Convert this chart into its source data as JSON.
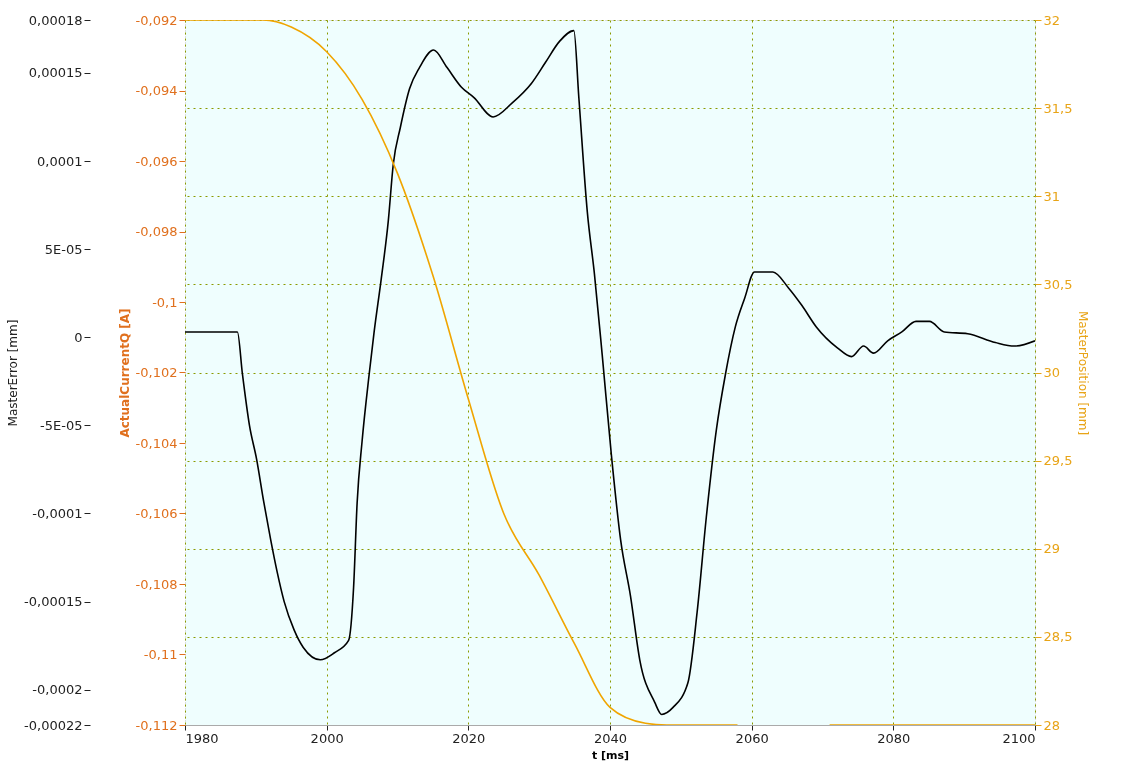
{
  "chart_data": {
    "type": "line",
    "xlabel": "t [ms]",
    "ylabel": "MasterError [mm]",
    "y2label": "MasterPosition [mm]",
    "y3label": "ActualCurrentQ [A]",
    "xlim": [
      1980,
      2100
    ],
    "xticks": [
      1980,
      2000,
      2020,
      2040,
      2060,
      2080,
      2100
    ],
    "ylim": [
      -0.00022,
      0.00018
    ],
    "yticks": [
      {
        "value": 0.00018,
        "label": "0,00018"
      },
      {
        "value": 0.00015,
        "label": "0,00015"
      },
      {
        "value": 0.0001,
        "label": "0,0001"
      },
      {
        "value": 5e-05,
        "label": "5E-05"
      },
      {
        "value": 0,
        "label": "0"
      },
      {
        "value": -5e-05,
        "label": "-5E-05"
      },
      {
        "value": -0.0001,
        "label": "-0,0001"
      },
      {
        "value": -0.00015,
        "label": "-0,00015"
      },
      {
        "value": -0.0002,
        "label": "-0,0002"
      },
      {
        "value": -0.00022,
        "label": "-0,00022"
      }
    ],
    "y2lim": [
      28,
      32
    ],
    "y2ticks": [
      {
        "value": 28,
        "label": "28"
      },
      {
        "value": 28.5,
        "label": "28,5"
      },
      {
        "value": 29,
        "label": "29"
      },
      {
        "value": 29.5,
        "label": "29,5"
      },
      {
        "value": 30,
        "label": "30"
      },
      {
        "value": 30.5,
        "label": "30,5"
      },
      {
        "value": 31,
        "label": "31"
      },
      {
        "value": 31.5,
        "label": "31,5"
      },
      {
        "value": 32,
        "label": "32"
      }
    ],
    "y3lim": [
      -0.112,
      -0.092
    ],
    "y3ticks": [
      {
        "value": -0.092,
        "label": "-0,092"
      },
      {
        "value": -0.094,
        "label": "-0,094"
      },
      {
        "value": -0.096,
        "label": "-0,096"
      },
      {
        "value": -0.098,
        "label": "-0,098"
      },
      {
        "value": -0.1,
        "label": "-0,1"
      },
      {
        "value": -0.102,
        "label": "-0,102"
      },
      {
        "value": -0.104,
        "label": "-0,104"
      },
      {
        "value": -0.106,
        "label": "-0,106"
      },
      {
        "value": -0.108,
        "label": "-0,108"
      },
      {
        "value": -0.11,
        "label": "-0,11"
      },
      {
        "value": -0.112,
        "label": "-0,112"
      }
    ],
    "grid": true,
    "marker": "none",
    "line_style": "solid",
    "series": [
      {
        "color": "#000000",
        "axis": "y",
        "x": [
          1980,
          1987.2,
          1987.4,
          1988.1,
          1989.1,
          1990.1,
          1991.1,
          1992.1,
          1993.0,
          1994.0,
          1995.4,
          1996.7,
          1999.1,
          2001.1,
          2003.1,
          2003.8,
          2004.3,
          2005.0,
          2006.0,
          2006.7,
          2007.7,
          2008.7,
          2009.4,
          2010.4,
          2011.7,
          2013.1,
          2015.1,
          2017.0,
          2019.0,
          2020.8,
          2023.5,
          2026.2,
          2028.9,
          2030.9,
          2032.9,
          2034.9,
          2035.6,
          2036.8,
          2037.8,
          2038.9,
          2040.2,
          2041.5,
          2042.9,
          2044.2,
          2046.3,
          2047.3,
          2048.9,
          2051.0,
          2052.3,
          2053.6,
          2055.0,
          2056.3,
          2057.7,
          2059.0,
          2060.4,
          2063.0,
          2065.2,
          2067.1,
          2069.1,
          2072.1,
          2074.1,
          2075.8,
          2077.2,
          2079.2,
          2081.2,
          2083.2,
          2085.1,
          2087.2,
          2090.5,
          2094.4,
          2097.1,
          2100
        ],
        "values": [
          3e-06,
          3e-06,
          3e-06,
          -2.06e-05,
          -5e-05,
          -6.9e-05,
          -9.3e-05,
          -0.000115,
          -0.000133,
          -0.00015,
          -0.000166,
          -0.000176,
          -0.000183,
          -0.000179,
          -0.000172,
          -0.000142,
          -9.4e-05,
          -5.9e-05,
          -2.1e-05,
          3e-06,
          3.3e-05,
          6.6e-05,
          9.8e-05,
          0.000119,
          0.000141,
          0.000153,
          0.000163,
          0.000153,
          0.000142,
          0.000136,
          0.000125,
          0.000133,
          0.000144,
          0.000156,
          0.000168,
          0.000174,
          0.000136,
          7.1e-05,
          3.6e-05,
          -1e-05,
          -6.7e-05,
          -0.000115,
          -0.000147,
          -0.000183,
          -0.000207,
          -0.000214,
          -0.00021,
          -0.000196,
          -0.000156,
          -0.000102,
          -5.3e-05,
          -2.1e-05,
          6e-06,
          2.2e-05,
          3.7e-05,
          3.7e-05,
          2.8e-05,
          1.8e-05,
          6e-06,
          -6e-06,
          -1.1e-05,
          -5e-06,
          -9e-06,
          -2e-06,
          3e-06,
          9e-06,
          9e-06,
          3e-06,
          2e-06,
          -3e-06,
          -5e-06,
          -2e-06
        ]
      },
      {
        "color": "#f0a500",
        "axis": "y2",
        "x": [
          1980,
          1991,
          1995,
          2000,
          2005,
          2010,
          2015,
          2020,
          2025,
          2030,
          2035,
          2040,
          2045,
          2048,
          2058,
          2064,
          2071,
          2100
        ],
        "values": [
          32,
          32,
          31.96,
          31.82,
          31.55,
          31.13,
          30.55,
          29.85,
          29.2,
          28.85,
          28.46,
          28.1,
          28.01,
          28,
          28,
          null,
          28,
          28
        ]
      }
    ]
  }
}
